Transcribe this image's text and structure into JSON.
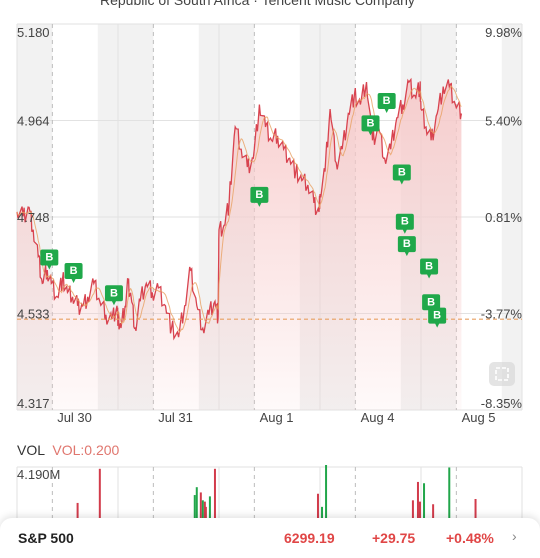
{
  "header": {
    "title": "Republic of South Africa · Tencent Music Company"
  },
  "chart_data": {
    "type": "line",
    "title": "",
    "x_dates": [
      "Jul 30",
      "Jul 31",
      "Aug 1",
      "Aug 4",
      "Aug 5"
    ],
    "y_ticks_left": [
      "5.180",
      "4.964",
      "4.748",
      "4.533",
      "4.317"
    ],
    "y_ticks_right": [
      "9.98%",
      "5.40%",
      "0.81%",
      "-3.77%",
      "-8.35%"
    ],
    "ylim": [
      4.317,
      5.18
    ],
    "previous_close": 4.52,
    "price_series": {
      "t": [
        0,
        0.06,
        0.12,
        0.16,
        0.21,
        0.25,
        0.3,
        0.34,
        0.4,
        0.45,
        0.5,
        0.55,
        0.6,
        0.65,
        0.7,
        0.76,
        0.82,
        0.88,
        0.94,
        0.99,
        1.0,
        1.03,
        1.07,
        1.1,
        1.13,
        1.17,
        1.22,
        1.28,
        1.34,
        1.4,
        1.47,
        1.53,
        1.6,
        1.66,
        1.72,
        1.78,
        1.84,
        1.9,
        1.96,
        1.99,
        2.0,
        2.05,
        2.1,
        2.16,
        2.22,
        2.28,
        2.34,
        2.4,
        2.46,
        2.52,
        2.58,
        2.64,
        2.7,
        2.76,
        2.82,
        2.88,
        2.94,
        2.99,
        3.0,
        3.05,
        3.1,
        3.16,
        3.22,
        3.28,
        3.34,
        3.4,
        3.46,
        3.52,
        3.58,
        3.64,
        3.7,
        3.76,
        3.82,
        3.88,
        3.94,
        3.99,
        4.0,
        4.05,
        4.1,
        4.16,
        4.22,
        4.28,
        4.34,
        4.4
      ],
      "v": [
        4.76,
        4.75,
        4.77,
        4.72,
        4.66,
        4.6,
        4.63,
        4.6,
        4.57,
        4.61,
        4.58,
        4.57,
        4.55,
        4.55,
        4.57,
        4.6,
        4.56,
        4.53,
        4.52,
        4.55,
        4.52,
        4.5,
        4.55,
        4.6,
        4.57,
        4.5,
        4.56,
        4.6,
        4.58,
        4.59,
        4.55,
        4.5,
        4.48,
        4.55,
        4.63,
        4.55,
        4.5,
        4.53,
        4.56,
        4.52,
        4.72,
        4.73,
        4.78,
        4.95,
        4.9,
        4.86,
        4.88,
        5.0,
        4.95,
        4.92,
        4.93,
        4.9,
        4.88,
        4.85,
        4.83,
        4.82,
        4.78,
        4.76,
        4.8,
        4.85,
        4.99,
        4.87,
        4.9,
        4.98,
        5.02,
        5.0,
        5.05,
        4.92,
        4.95,
        4.88,
        4.9,
        4.97,
        5.0,
        5.05,
        5.02,
        5.04,
        4.99,
        4.95,
        4.92,
        4.98,
        5.04,
        5.04,
        5.0,
        4.98
      ]
    },
    "buy_markers": [
      {
        "t": 0.32,
        "v": 4.64,
        "label": "B"
      },
      {
        "t": 0.56,
        "v": 4.61,
        "label": "B"
      },
      {
        "t": 0.96,
        "v": 4.56,
        "label": "B"
      },
      {
        "t": 2.4,
        "v": 4.78,
        "label": "B"
      },
      {
        "t": 3.5,
        "v": 4.94,
        "label": "B"
      },
      {
        "t": 3.66,
        "v": 4.99,
        "label": "B"
      },
      {
        "t": 3.81,
        "v": 4.83,
        "label": "B"
      },
      {
        "t": 3.84,
        "v": 4.72,
        "label": "B"
      },
      {
        "t": 3.86,
        "v": 4.67,
        "label": "B"
      },
      {
        "t": 4.08,
        "v": 4.62,
        "label": "B"
      },
      {
        "t": 4.1,
        "v": 4.54,
        "label": "B"
      },
      {
        "t": 4.16,
        "v": 4.51,
        "label": "B"
      }
    ],
    "volume": {
      "label": "VOL",
      "value_label": "VOL:0.200",
      "max_tick": "4.190M",
      "bars": [
        {
          "t": 0.82,
          "v": 3.9,
          "c": "#d23b4b"
        },
        {
          "t": 1.76,
          "v": 1.9,
          "c": "#21a64a"
        },
        {
          "t": 1.78,
          "v": 2.5,
          "c": "#21a64a"
        },
        {
          "t": 1.82,
          "v": 2.1,
          "c": "#d23b4b"
        },
        {
          "t": 1.84,
          "v": 1.5,
          "c": "#21a64a"
        },
        {
          "t": 1.87,
          "v": 1.0,
          "c": "#d23b4b"
        },
        {
          "t": 1.91,
          "v": 1.8,
          "c": "#21a64a"
        },
        {
          "t": 1.96,
          "v": 3.9,
          "c": "#d23b4b"
        },
        {
          "t": 2.98,
          "v": 2.0,
          "c": "#d23b4b"
        },
        {
          "t": 3.02,
          "v": 1.0,
          "c": "#21a64a"
        },
        {
          "t": 3.06,
          "v": 4.19,
          "c": "#21a64a"
        },
        {
          "t": 3.97,
          "v": 2.9,
          "c": "#d23b4b"
        },
        {
          "t": 3.99,
          "v": 1.4,
          "c": "#d23b4b"
        },
        {
          "t": 4.03,
          "v": 2.8,
          "c": "#21a64a"
        },
        {
          "t": 4.12,
          "v": 1.2,
          "c": "#d23b4b"
        },
        {
          "t": 4.28,
          "v": 4.0,
          "c": "#21a64a"
        },
        {
          "t": 4.54,
          "v": 1.6,
          "c": "#d23b4b"
        },
        {
          "t": 0.6,
          "v": 1.3,
          "c": "#d23b4b"
        },
        {
          "t": 1.86,
          "v": 1.4,
          "c": "#d23b4b"
        },
        {
          "t": 3.92,
          "v": 1.5,
          "c": "#d23b4b"
        }
      ]
    },
    "colors": {
      "line": "#d8434f",
      "fill": "#f7c9c9",
      "avg": "#e8a061",
      "prev_close": "#e8a061",
      "buy": "#1fa84a",
      "shade": "#f2f2f2",
      "grid": "#e2e2e2"
    }
  },
  "bottom_bar": {
    "name": "S&P 500",
    "price": "6299.19",
    "change": "+29.75",
    "pct": "+0.48%",
    "chevron": "›"
  }
}
